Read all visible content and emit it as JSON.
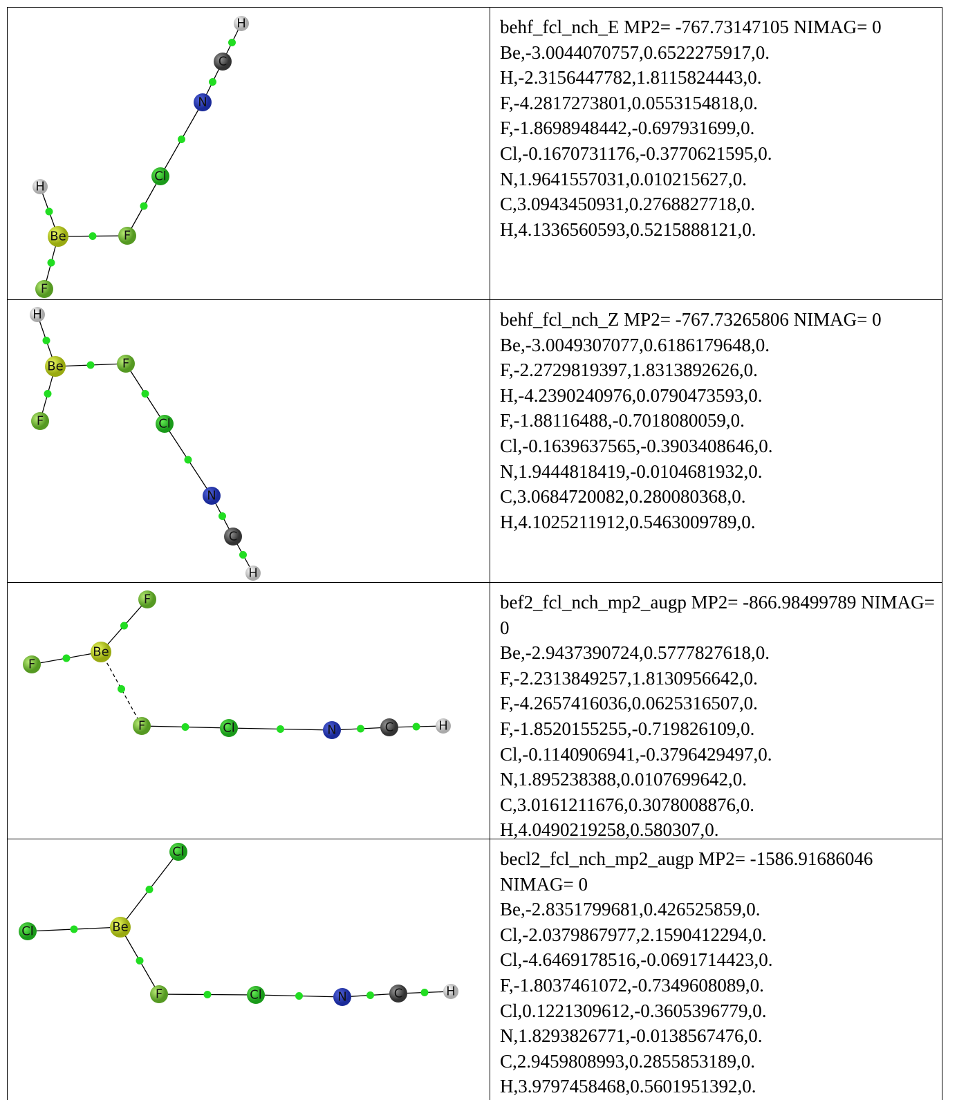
{
  "rows": [
    {
      "atoms": [
        "H",
        "C",
        "N",
        "Cl",
        "H",
        "Be",
        "F",
        "F"
      ],
      "header": "behf_fcl_nch_E MP2= -767.73147105 NIMAG= 0",
      "coordinates": [
        "Be,-3.0044070757,0.6522275917,0.",
        "H,-2.3156447782,1.8115824443,0.",
        "F,-4.2817273801,0.0553154818,0.",
        "F,-1.8698948442,-0.697931699,0.",
        "Cl,-0.1670731176,-0.3770621595,0.",
        "N,1.9641557031,0.010215627,0.",
        "C,3.0943450931,0.2768827718,0.",
        "H,4.1336560593,0.5215888121,0."
      ]
    },
    {
      "atoms": [
        "H",
        "Be",
        "F",
        "F",
        "Cl",
        "N",
        "C",
        "H"
      ],
      "header": "behf_fcl_nch_Z MP2= -767.73265806 NIMAG= 0",
      "coordinates": [
        "Be,-3.0049307077,0.6186179648,0.",
        "F,-2.2729819397,1.8313892626,0.",
        "H,-4.2390240976,0.0790473593,0.",
        "F,-1.88116488,-0.7018080059,0.",
        "Cl,-0.1639637565,-0.3903408646,0.",
        "N,1.9444818419,-0.0104681932,0.",
        "C,3.0684720082,0.280080368,0.",
        "H,4.1025211912,0.5463009789,0."
      ]
    },
    {
      "atoms": [
        "F",
        "Be",
        "F",
        "F",
        "Cl",
        "N",
        "C",
        "H"
      ],
      "header": "bef2_fcl_nch_mp2_augp MP2= -866.98499789 NIMAG= 0",
      "coordinates": [
        "Be,-2.9437390724,0.5777827618,0.",
        "F,-2.2313849257,1.8130956642,0.",
        "F,-4.2657416036,0.0625316507,0.",
        "F,-1.8520155255,-0.719826109,0.",
        "Cl,-0.1140906941,-0.3796429497,0.",
        "N,1.895238388,0.0107699642,0.",
        "C,3.0161211676,0.3078008876,0.",
        "H,4.0490219258,0.580307,0."
      ]
    },
    {
      "atoms": [
        "Cl",
        "Be",
        "Cl",
        "F",
        "Cl",
        "N",
        "C",
        "H"
      ],
      "header": "becl2_fcl_nch_mp2_augp MP2= -1586.91686046 NIMAG= 0",
      "coordinates": [
        "Be,-2.8351799681,0.426525859,0.",
        "Cl,-2.0379867977,2.1590412294,0.",
        "Cl,-4.6469178516,-0.0691714423,0.",
        "F,-1.8037461072,-0.7349608089,0.",
        "Cl,0.1221309612,-0.3605396779,0.",
        "N,1.8293826771,-0.0138567476,0.",
        "C,2.9459808993,0.2855853189,0.",
        "H,3.9797458468,0.5601951392,0."
      ]
    }
  ]
}
